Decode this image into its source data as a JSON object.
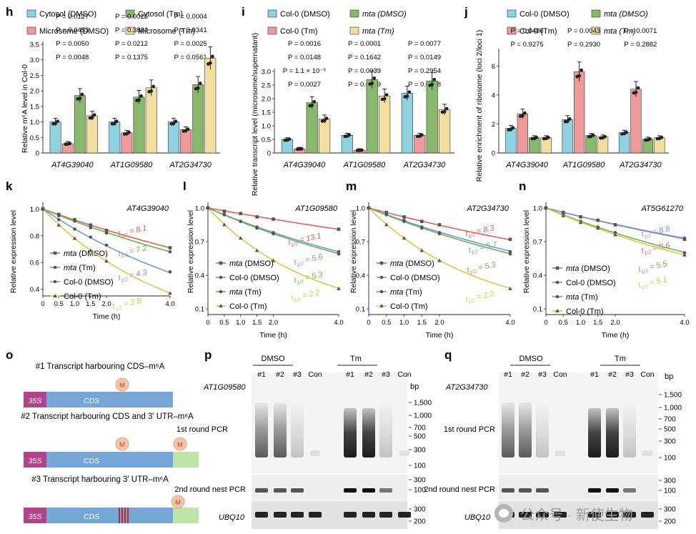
{
  "colors": {
    "cyan": "#8fd1e3",
    "red": "#ef9a9a",
    "green": "#88b86b",
    "yellow": "#f2dea1",
    "k_red": "#e0605b",
    "k_blue": "#7098d6",
    "k_green": "#6bb24f",
    "k_yellow": "#e2c44a",
    "cassette_35s": "#b3438a",
    "cassette_cds": "#76a6d6",
    "cassette_utr": "#bfe4a8",
    "m_mark": "#f6c4a7"
  },
  "panels": {
    "h": "h",
    "i": "i",
    "j": "j",
    "k": "k",
    "l": "l",
    "m": "m",
    "n": "n",
    "o": "o",
    "p": "p",
    "q": "q"
  },
  "bar_ticks": {
    "h": [
      "0",
      "0.5",
      "1.0",
      "1.5",
      "2.0",
      "2.5",
      "3.0",
      "3.5"
    ],
    "i": [
      "0",
      "0.5",
      "1.0",
      "1.5",
      "2.0",
      "2.5",
      "3.0"
    ],
    "j": [
      "0",
      "2",
      "4",
      "6"
    ]
  },
  "decay_ticks": {
    "x": [
      "0",
      "0.5",
      "1.0",
      "1.5",
      "2.0",
      "4.0"
    ],
    "k": [
      "1.0",
      "0.8",
      "0.6",
      "0.4"
    ],
    "l": [
      "1.0",
      "0.7",
      "0.4",
      "0.1"
    ],
    "m": [
      "1.0",
      "0.7",
      "0.4",
      "0.1"
    ],
    "n": [
      "1.0",
      "0.7",
      "0.4",
      "0.1"
    ]
  },
  "chart_data": [
    {
      "panel": "h",
      "type": "bar",
      "ylabel": "Relative m⁶A level in Col-0",
      "ylim": [
        0,
        3.5
      ],
      "categories": [
        "AT4G39040",
        "AT1G09580",
        "AT2G34730"
      ],
      "series": [
        {
          "name": "Cytosol (DMSO)",
          "values": [
            1.0,
            1.0,
            1.0
          ]
        },
        {
          "name": "Microsome (DMSO)",
          "values": [
            0.3,
            0.65,
            0.75
          ]
        },
        {
          "name": "Cytosol (Tm)",
          "values": [
            1.85,
            1.8,
            2.2
          ]
        },
        {
          "name": "Microsome (Tm)",
          "values": [
            1.2,
            2.1,
            3.05
          ]
        }
      ],
      "stats": [
        [
          "P = 0.0127",
          "P = 0.0453",
          "P = 0.0050",
          "P = 0.0048"
        ],
        [
          "P = 0.0025",
          "P = 0.3884",
          "P = 0.0212",
          "P = 0.1375"
        ],
        [
          "P = 0.0004",
          "P = 0.0341",
          "P = 0.0025",
          "P = 0.0561"
        ]
      ]
    },
    {
      "panel": "i",
      "type": "bar",
      "ylabel": "Relative transcript level (microsome/supernatant)",
      "ylim": [
        0,
        3
      ],
      "categories": [
        "AT4G39040",
        "AT1G09580",
        "AT2G34730"
      ],
      "series": [
        {
          "name": "Col-0 (DMSO)",
          "values": [
            0.5,
            0.65,
            2.2
          ]
        },
        {
          "name": "Col-0 (Tm)",
          "values": [
            0.15,
            0.1,
            0.65
          ]
        },
        {
          "name": "mta (DMSO)",
          "values": [
            1.85,
            2.7,
            2.65
          ]
        },
        {
          "name": "mta (Tm)",
          "values": [
            1.25,
            2.1,
            1.6
          ]
        }
      ],
      "stats": [
        [
          "P = 0.0016",
          "P = 0.0148",
          "P = 1.1 × 10⁻⁵",
          "P = 0.0027"
        ],
        [
          "P = 0.0001",
          "P = 0.1642",
          "P = 0.0039",
          "P = 0.0019"
        ],
        [
          "P = 0.0077",
          "P = 0.0149",
          "P = 0.2954",
          "P = 0.0088"
        ]
      ]
    },
    {
      "panel": "j",
      "type": "bar",
      "ylabel": "Relative enrichment of ribosome (loci 2/loci 1)",
      "ylim": [
        0,
        7
      ],
      "categories": [
        "AT4G39040",
        "AT1G09580",
        "AT2G34730"
      ],
      "series": [
        {
          "name": "Col-0 (DMSO)",
          "values": [
            1.7,
            2.3,
            1.4
          ]
        },
        {
          "name": "Col-0 (Tm)",
          "values": [
            2.7,
            5.6,
            4.4
          ]
        },
        {
          "name": "mta (DMSO)",
          "values": [
            1.05,
            1.2,
            0.95
          ]
        },
        {
          "name": "mta (Tm)",
          "values": [
            1.05,
            1.1,
            1.05
          ]
        }
      ],
      "stats": [
        [
          "P = 0.0486",
          "P = 0.9275"
        ],
        [
          "P = 0.0043",
          "P = 0.2930"
        ],
        [
          "P = 0.0071",
          "P = 0.2882"
        ]
      ]
    },
    {
      "panel": "k",
      "type": "line",
      "title": "AT4G39040",
      "xlabel": "Time (h)",
      "ylabel": "Relative expression level",
      "x": [
        0,
        0.5,
        1.0,
        1.5,
        2.0,
        4.0
      ],
      "ylim": [
        0.35,
        1.05
      ],
      "series": [
        {
          "name": "mta (DMSO)",
          "half_life": "8.1",
          "values": [
            1.0,
            0.96,
            0.92,
            0.88,
            0.84,
            0.71
          ]
        },
        {
          "name": "mta (Tm)",
          "half_life": "7.2",
          "values": [
            1.0,
            0.95,
            0.91,
            0.86,
            0.82,
            0.68
          ]
        },
        {
          "name": "Col-0 (DMSO)",
          "half_life": "4.3",
          "values": [
            1.0,
            0.92,
            0.85,
            0.79,
            0.73,
            0.53
          ]
        },
        {
          "name": "Col-0 (Tm)",
          "half_life": "2.8",
          "values": [
            1.0,
            0.88,
            0.78,
            0.69,
            0.61,
            0.37
          ]
        }
      ]
    },
    {
      "panel": "l",
      "type": "line",
      "title": "AT1G09580",
      "xlabel": "Time (h)",
      "ylabel": "Relative expression level",
      "x": [
        0,
        0.5,
        1.0,
        1.5,
        2.0,
        4.0
      ],
      "ylim": [
        0.05,
        1.05
      ],
      "series": [
        {
          "name": "mta (DMSO)",
          "half_life": "13.1",
          "values": [
            1.0,
            0.97,
            0.95,
            0.92,
            0.9,
            0.81
          ]
        },
        {
          "name": "Col-0 (DMSO)",
          "half_life": "5.6",
          "values": [
            1.0,
            0.94,
            0.88,
            0.83,
            0.78,
            0.61
          ]
        },
        {
          "name": "mta (Tm)",
          "half_life": "5.3",
          "values": [
            1.0,
            0.94,
            0.88,
            0.82,
            0.77,
            0.59
          ]
        },
        {
          "name": "Col-0 (Tm)",
          "half_life": "2.2",
          "values": [
            1.0,
            0.85,
            0.73,
            0.62,
            0.53,
            0.28
          ]
        }
      ]
    },
    {
      "panel": "m",
      "type": "line",
      "title": "AT2G34730",
      "xlabel": "Time (h)",
      "ylabel": "Relative expression level",
      "x": [
        0,
        0.5,
        1.0,
        1.5,
        2.0,
        4.0
      ],
      "ylim": [
        0.05,
        1.05
      ],
      "series": [
        {
          "name": "mta (DMSO)",
          "half_life": "8.3",
          "values": [
            1.0,
            0.96,
            0.92,
            0.88,
            0.85,
            0.72
          ]
        },
        {
          "name": "Col-0 (DMSO)",
          "half_life": "5.7",
          "values": [
            1.0,
            0.94,
            0.89,
            0.83,
            0.78,
            0.61
          ]
        },
        {
          "name": "mta (Tm)",
          "half_life": "5.3",
          "values": [
            1.0,
            0.94,
            0.88,
            0.82,
            0.77,
            0.59
          ]
        },
        {
          "name": "Col-0 (Tm)",
          "half_life": "2.2",
          "values": [
            1.0,
            0.85,
            0.73,
            0.62,
            0.53,
            0.28
          ]
        }
      ]
    },
    {
      "panel": "n",
      "type": "line",
      "title": "AT5G61270",
      "xlabel": "Time (h)",
      "ylabel": "Relative expression level",
      "x": [
        0,
        0.5,
        1.0,
        1.5,
        2.0,
        4.0
      ],
      "ylim": [
        0.05,
        1.05
      ],
      "series": [
        {
          "name": "mta (DMSO)",
          "half_life": "8.6",
          "values": [
            1.0,
            0.96,
            0.92,
            0.89,
            0.85,
            0.72
          ]
        },
        {
          "name": "Col-0 (DMSO)",
          "half_life": "8.8",
          "values": [
            1.0,
            0.96,
            0.92,
            0.89,
            0.85,
            0.73
          ]
        },
        {
          "name": "mta (Tm)",
          "half_life": "5.5",
          "values": [
            1.0,
            0.94,
            0.88,
            0.83,
            0.78,
            0.6
          ]
        },
        {
          "name": "Col-0 (Tm)",
          "half_life": "5.1",
          "values": [
            1.0,
            0.93,
            0.87,
            0.82,
            0.76,
            0.58
          ]
        }
      ]
    }
  ],
  "diagram": {
    "m_label": "M",
    "label_35s": "35S",
    "label_cds": "CDS",
    "constructs": [
      {
        "title": "#1 Transcript harbouring CDS–m⁶A"
      },
      {
        "title": "#2 Transcript harbouring CDS and 3′ UTR–m⁶A"
      },
      {
        "title": "#3 Transcript harbouring 3′ UTR–m⁶A"
      }
    ]
  },
  "gels": [
    {
      "panel": "p",
      "gene": "AT1G09580",
      "group1": "DMSO",
      "group2": "Tm",
      "lanes": [
        "#1",
        "#2",
        "#3",
        "Con",
        "#1",
        "#2",
        "#3",
        "Con"
      ],
      "row1": "1st round PCR",
      "row2": "2nd round nest PCR",
      "row3": "UBQ10",
      "bp_unit": "bp",
      "bp": [
        "1,500",
        "1,000",
        "700",
        "500",
        "300",
        "100"
      ],
      "bp2": [
        "300",
        "100"
      ],
      "bp3": [
        "300",
        "200"
      ]
    },
    {
      "panel": "q",
      "gene": "AT2G34730",
      "group1": "DMSO",
      "group2": "Tm",
      "lanes": [
        "#1",
        "#2",
        "#3",
        "Con",
        "#1",
        "#2",
        "#3",
        "Con"
      ],
      "row1": "1st round PCR",
      "row2": "2nd round nest PCR",
      "row3": "UBQ10",
      "bp_unit": "bp",
      "bp": [
        "1,500",
        "1,000",
        "700",
        "500",
        "300",
        "100"
      ],
      "bp2": [
        "300",
        "100"
      ],
      "bp3": [
        "300",
        "200"
      ]
    }
  ],
  "watermark": {
    "text": "公众号 · 新使生物"
  }
}
